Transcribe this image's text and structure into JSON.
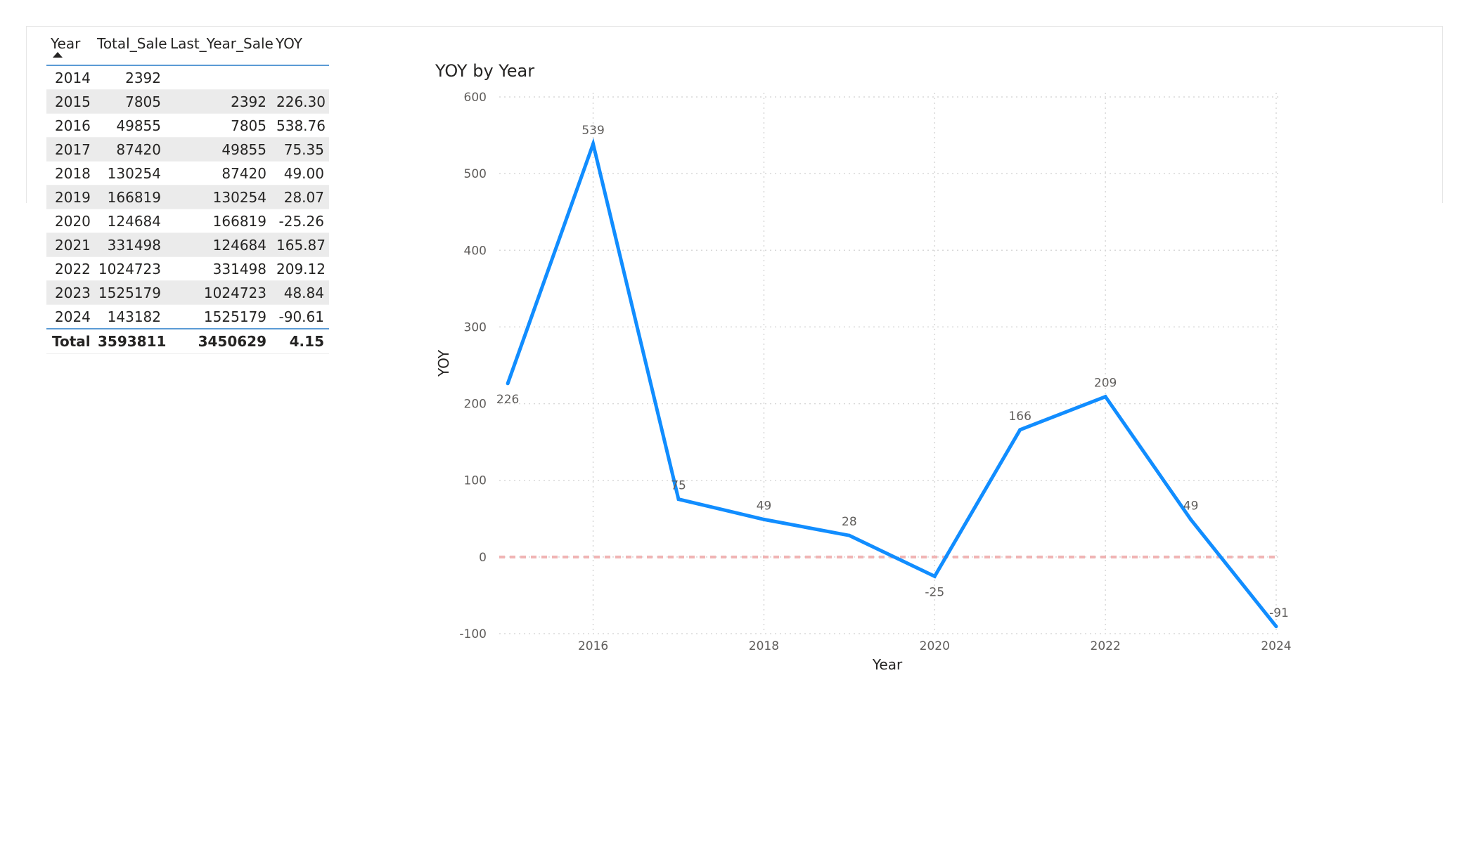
{
  "table": {
    "columns": [
      "Year",
      "Total_Sale",
      "Last_Year_Sale",
      "YOY"
    ],
    "sort": {
      "column": "Year",
      "direction": "ascending"
    },
    "rows": [
      [
        "2014",
        "2392",
        "",
        ""
      ],
      [
        "2015",
        "7805",
        "2392",
        "226.30"
      ],
      [
        "2016",
        "49855",
        "7805",
        "538.76"
      ],
      [
        "2017",
        "87420",
        "49855",
        "75.35"
      ],
      [
        "2018",
        "130254",
        "87420",
        "49.00"
      ],
      [
        "2019",
        "166819",
        "130254",
        "28.07"
      ],
      [
        "2020",
        "124684",
        "166819",
        "-25.26"
      ],
      [
        "2021",
        "331498",
        "124684",
        "165.87"
      ],
      [
        "2022",
        "1024723",
        "331498",
        "209.12"
      ],
      [
        "2023",
        "1525179",
        "1024723",
        "48.84"
      ],
      [
        "2024",
        "143182",
        "1525179",
        "-90.61"
      ]
    ],
    "total": [
      "Total",
      "3593811",
      "3450629",
      "4.15"
    ]
  },
  "chart_data": {
    "type": "line",
    "title": "YOY by Year",
    "xlabel": "Year",
    "ylabel": "YOY",
    "x": [
      2015,
      2016,
      2017,
      2018,
      2019,
      2020,
      2021,
      2022,
      2023,
      2024
    ],
    "series": [
      {
        "values": [
          226.3,
          538.76,
          75.35,
          49.0,
          28.07,
          -25.26,
          165.87,
          209.12,
          48.84,
          -90.61
        ],
        "labels": [
          "226",
          "539",
          "75",
          "49",
          "28",
          "-25",
          "166",
          "209",
          "49",
          "-91"
        ],
        "color": "#118dff"
      }
    ],
    "x_ticks": [
      2016,
      2018,
      2020,
      2022,
      2024
    ],
    "y_ticks": [
      -100,
      0,
      100,
      200,
      300,
      400,
      500,
      600
    ],
    "ylim": [
      -100,
      600
    ],
    "xlim": [
      2014.9,
      2024
    ],
    "grid": true,
    "reference_line": {
      "y": 0,
      "color": "#f0b4b4",
      "style": "dashed"
    }
  }
}
